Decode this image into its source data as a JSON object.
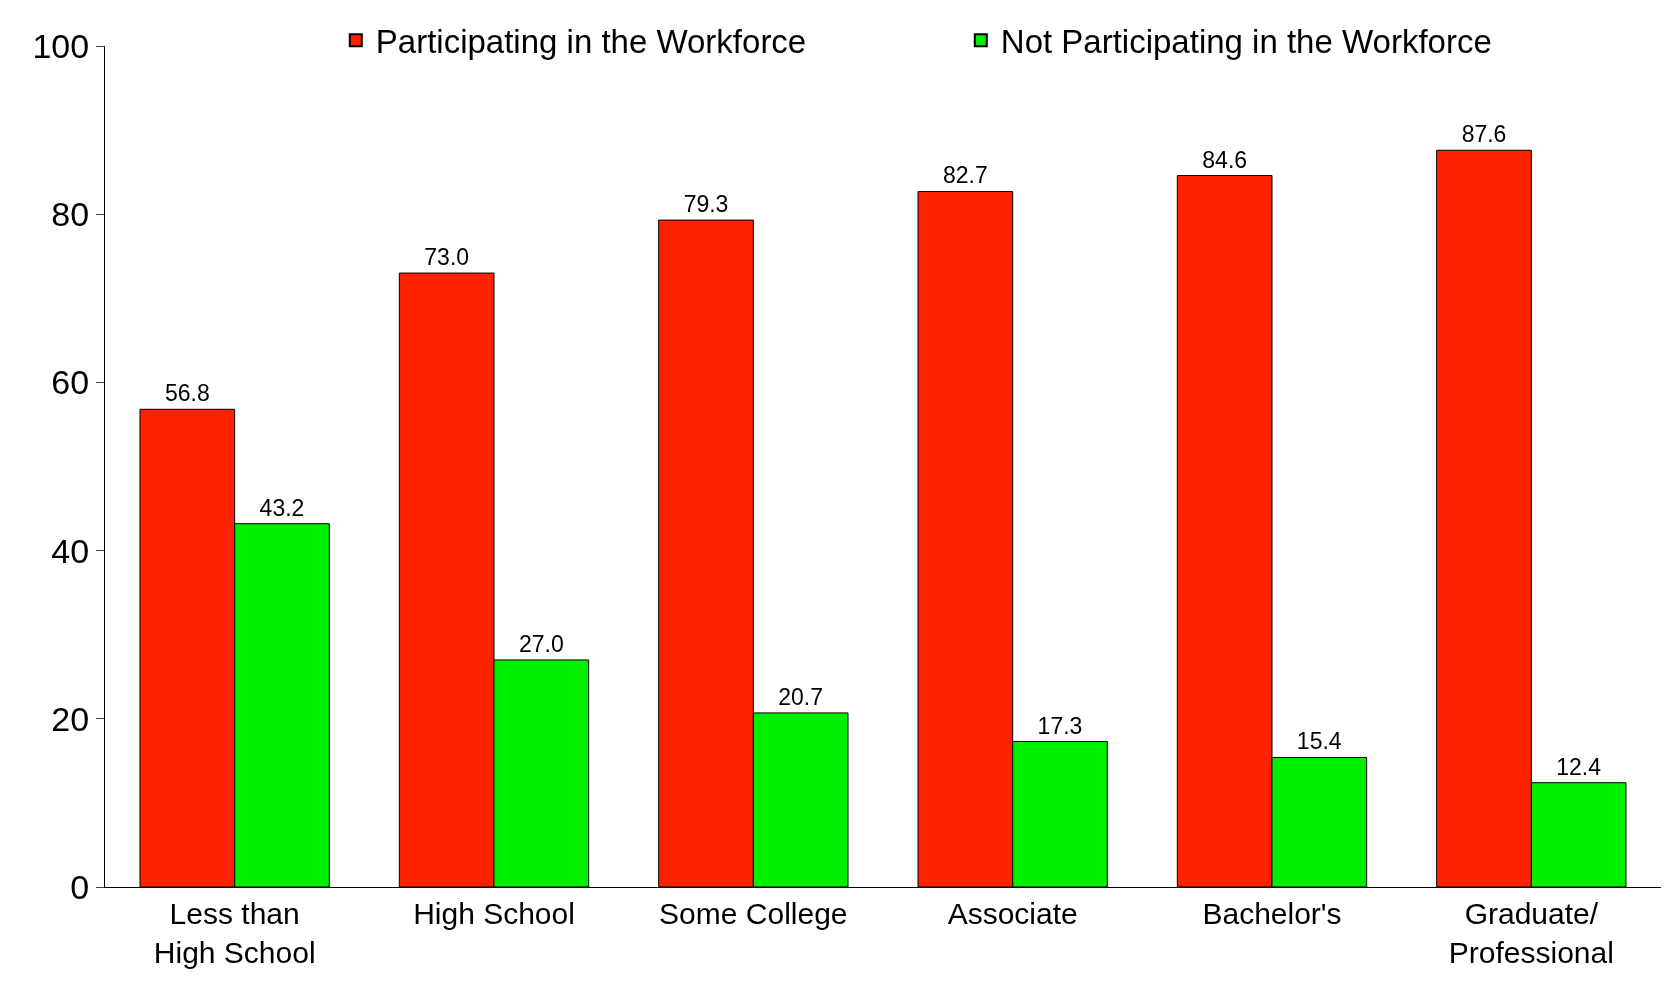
{
  "chart_data": {
    "type": "bar",
    "categories": [
      "Less than\nHigh School",
      "High School",
      "Some College",
      "Associate",
      "Bachelor's",
      "Graduate/\nProfessional"
    ],
    "series": [
      {
        "name": "Participating in the Workforce",
        "color": "#ff2200",
        "values": [
          56.8,
          73.0,
          79.3,
          82.7,
          84.6,
          87.6
        ],
        "value_labels": [
          "56.8",
          "73.0",
          "79.3",
          "82.7",
          "84.6",
          "87.6"
        ]
      },
      {
        "name": "Not Participating in the Workforce",
        "color": "#00ee00",
        "values": [
          43.2,
          27.0,
          20.7,
          17.3,
          15.4,
          12.4
        ],
        "value_labels": [
          "43.2",
          "27.0",
          "20.7",
          "17.3",
          "15.4",
          "12.4"
        ]
      }
    ],
    "ylim": [
      0,
      100
    ],
    "yticks": [
      0,
      20,
      40,
      60,
      80,
      100
    ],
    "legend": "top"
  }
}
